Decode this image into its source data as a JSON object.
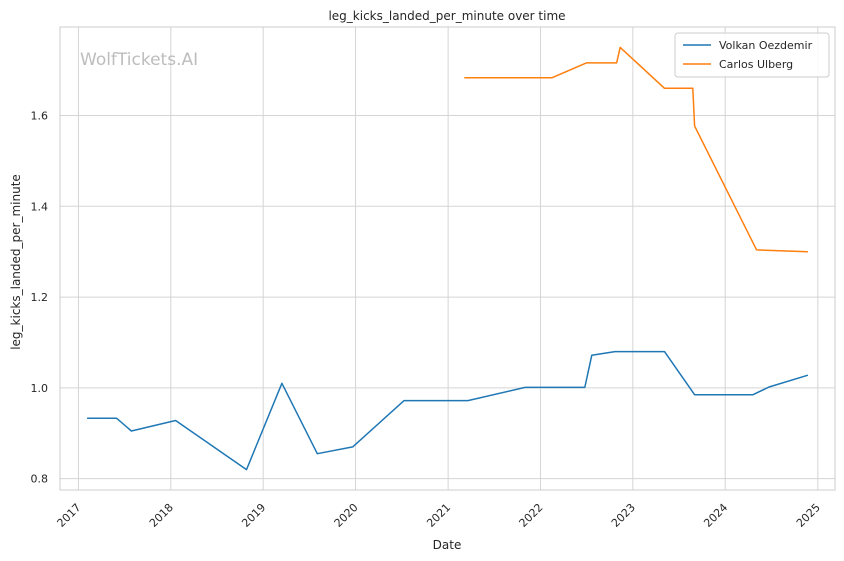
{
  "watermark": "WolfTickets.AI",
  "chart_data": {
    "type": "line",
    "title": "leg_kicks_landed_per_minute over time",
    "xlabel": "Date",
    "ylabel": "leg_kicks_landed_per_minute",
    "x_ticks": [
      "2017",
      "2018",
      "2019",
      "2020",
      "2021",
      "2022",
      "2023",
      "2024",
      "2025"
    ],
    "y_ticks": [
      "0.8",
      "1.0",
      "1.2",
      "1.4",
      "1.6"
    ],
    "xlim": [
      "2016-10-20",
      "2025-03-10"
    ],
    "ylim": [
      0.775,
      1.795
    ],
    "grid": true,
    "legend_position": "top-right",
    "series": [
      {
        "name": "Volkan Oezdemir",
        "color": "#1f77b4",
        "points": [
          [
            "2017-02-04",
            0.933
          ],
          [
            "2017-06-01",
            0.933
          ],
          [
            "2017-07-29",
            0.905
          ],
          [
            "2018-01-20",
            0.928
          ],
          [
            "2018-10-27",
            0.82
          ],
          [
            "2019-03-16",
            1.01
          ],
          [
            "2019-08-03",
            0.855
          ],
          [
            "2019-12-21",
            0.87
          ],
          [
            "2020-07-11",
            0.972
          ],
          [
            "2021-03-20",
            0.972
          ],
          [
            "2021-11-01",
            1.001
          ],
          [
            "2022-06-25",
            1.001
          ],
          [
            "2022-07-23",
            1.072
          ],
          [
            "2022-10-22",
            1.08
          ],
          [
            "2023-05-06",
            1.08
          ],
          [
            "2023-09-02",
            0.985
          ],
          [
            "2024-04-20",
            0.985
          ],
          [
            "2024-06-22",
            1.002
          ],
          [
            "2024-11-23",
            1.028
          ]
        ]
      },
      {
        "name": "Carlos Ulberg",
        "color": "#ff7f0e",
        "points": [
          [
            "2021-03-06",
            1.683
          ],
          [
            "2022-02-15",
            1.683
          ],
          [
            "2022-07-01",
            1.716
          ],
          [
            "2022-10-29",
            1.716
          ],
          [
            "2022-11-12",
            1.75
          ],
          [
            "2023-05-06",
            1.66
          ],
          [
            "2023-08-26",
            1.66
          ],
          [
            "2023-09-02",
            1.577
          ],
          [
            "2024-05-04",
            1.304
          ],
          [
            "2024-11-23",
            1.3
          ]
        ]
      }
    ]
  }
}
